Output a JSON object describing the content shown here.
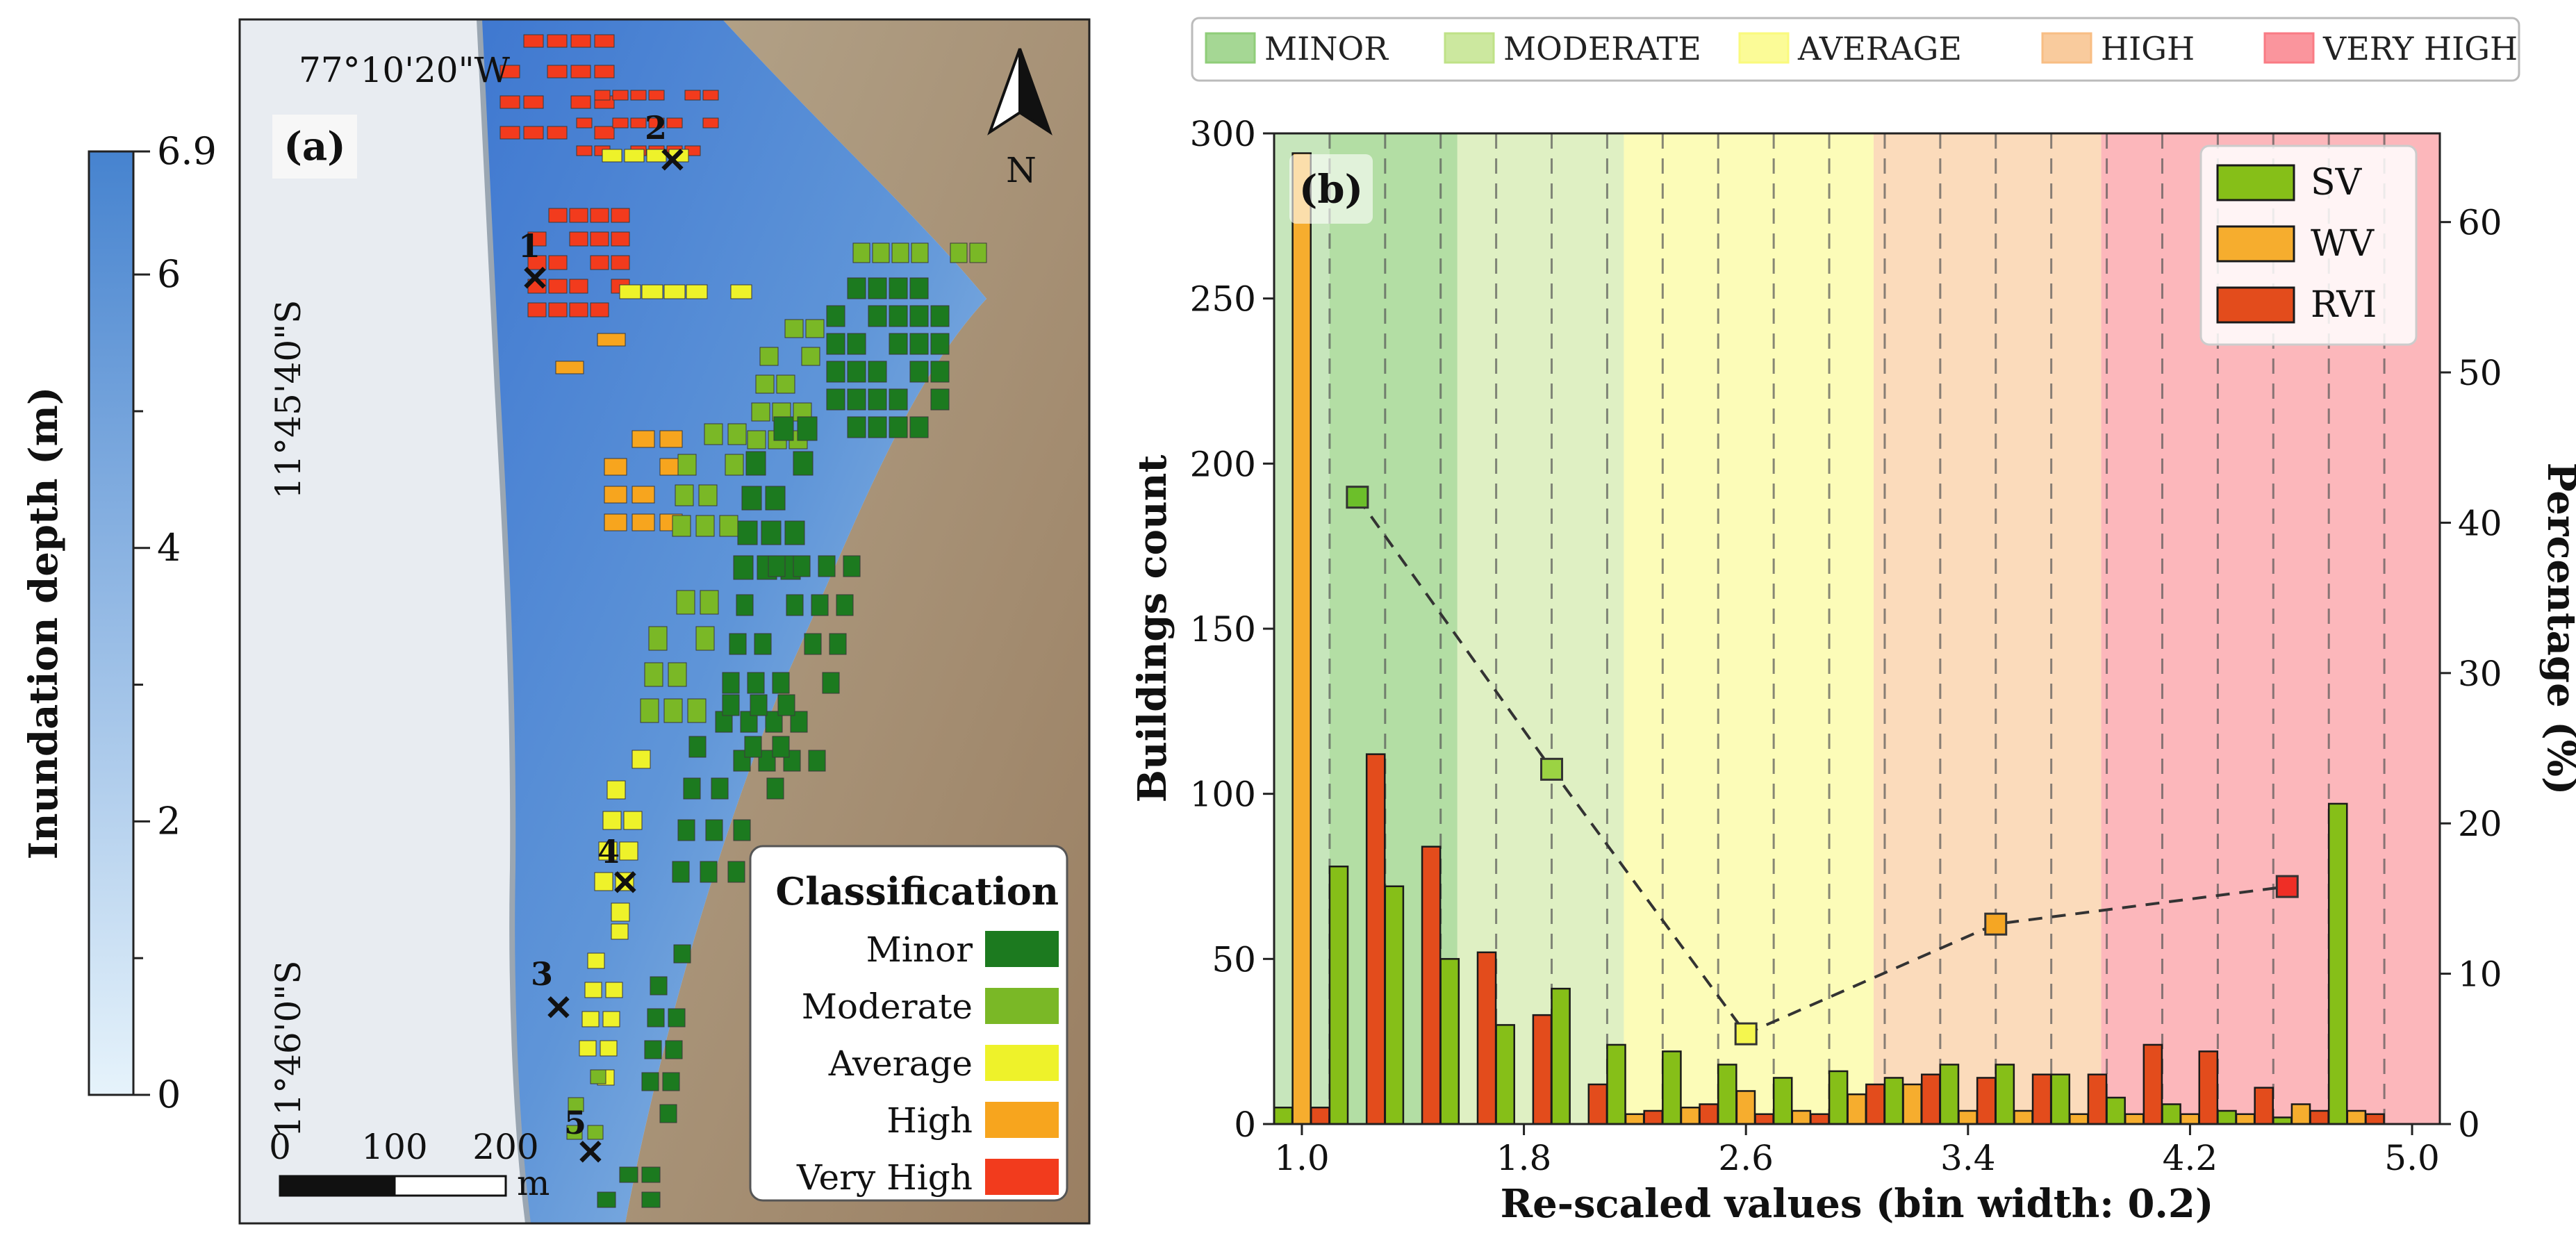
{
  "colorbar": {
    "label": "Inundation depth (m)",
    "min": 0,
    "max": 6.9,
    "ticks": [
      {
        "value": 0,
        "label": "0"
      },
      {
        "value": 2,
        "label": "2"
      },
      {
        "value": 4,
        "label": "4"
      },
      {
        "value": 6,
        "label": "6"
      },
      {
        "value": 6.9,
        "label": "6.9"
      }
    ],
    "minor_ticks": [
      1,
      3,
      5
    ],
    "color_low": "#e6f3fb",
    "color_high": "#4683cf"
  },
  "map": {
    "panel_label": "(a)",
    "coord_top": "77°10'20\"W",
    "coord_lat1": "11°45'40\"S",
    "coord_lat2": "11°46'0\"S",
    "north_label": "N",
    "scale_labels": [
      "0",
      "100",
      "200"
    ],
    "scale_unit": "m",
    "markers": [
      "1",
      "2",
      "3",
      "4",
      "5"
    ],
    "legend": {
      "title": "Classification",
      "items": [
        {
          "label": "Minor",
          "color": "#1c7a1f"
        },
        {
          "label": "Moderate",
          "color": "#7ab826"
        },
        {
          "label": "Average",
          "color": "#eef22a"
        },
        {
          "label": "High",
          "color": "#f7a51e"
        },
        {
          "label": "Very High",
          "color": "#f23b1d"
        }
      ]
    }
  },
  "chart_data": {
    "type": "bar",
    "panel_label": "(b)",
    "title": "",
    "xlabel": "Re-scaled values (bin width: 0.2)",
    "ylabel": "Buildings count",
    "ylabel_right": "Percentage (%)",
    "xlim": [
      0.9,
      5.1
    ],
    "ylim": [
      0,
      300
    ],
    "ylim_right": [
      0,
      65.9
    ],
    "x_ticks": [
      1.0,
      1.8,
      2.6,
      3.4,
      4.2,
      5.0
    ],
    "x_tick_labels": [
      "1.0",
      "1.8",
      "2.6",
      "3.4",
      "4.2",
      "5.0"
    ],
    "y_ticks": [
      0,
      50,
      100,
      150,
      200,
      250,
      300
    ],
    "y_ticks_right": [
      0,
      10,
      20,
      30,
      40,
      50,
      60
    ],
    "bin_width": 0.2,
    "bin_starts": [
      1.0,
      1.2,
      1.4,
      1.6,
      1.8,
      2.0,
      2.2,
      2.4,
      2.6,
      2.8,
      3.0,
      3.2,
      3.4,
      3.6,
      3.8,
      4.0,
      4.2,
      4.4,
      4.6,
      4.8
    ],
    "classes": [
      {
        "name": "MINOR",
        "range": [
          0.9,
          1.56
        ],
        "color": "#8fcd79",
        "fill_opacity": 0.5
      },
      {
        "name": "MODERATE",
        "range": [
          1.56,
          2.16
        ],
        "color": "#bfe287",
        "fill_opacity": 0.5
      },
      {
        "name": "AVERAGE",
        "range": [
          2.16,
          3.06
        ],
        "color": "#fafa7d",
        "fill_opacity": 0.55
      },
      {
        "name": "HIGH",
        "range": [
          3.06,
          3.88
        ],
        "color": "#f8be84",
        "fill_opacity": 0.55
      },
      {
        "name": "VERY HIGH",
        "range": [
          3.88,
          5.1
        ],
        "color": "#f97b84",
        "fill_opacity": 0.55
      }
    ],
    "series": [
      {
        "name": "SV",
        "color": "#86bf18",
        "values": [
          5,
          78,
          72,
          50,
          30,
          41,
          24,
          22,
          18,
          14,
          16,
          14,
          18,
          18,
          15,
          8,
          6,
          4,
          2,
          97
        ]
      },
      {
        "name": "WV",
        "color": "#f6ad2e",
        "values": [
          294,
          0,
          0,
          0,
          0,
          0,
          3,
          5,
          10,
          4,
          9,
          12,
          4,
          4,
          3,
          3,
          3,
          3,
          6,
          4
        ]
      },
      {
        "name": "RVI",
        "color": "#e34c1c",
        "values": [
          5,
          112,
          84,
          52,
          33,
          12,
          4,
          6,
          3,
          3,
          12,
          15,
          14,
          15,
          15,
          24,
          22,
          11,
          4,
          3
        ]
      }
    ],
    "percentage_line": {
      "x": [
        1.2,
        1.9,
        2.6,
        3.5,
        4.55
      ],
      "y": [
        41.7,
        23.6,
        6.0,
        13.3,
        15.8
      ],
      "colors": [
        "#6cbf2a",
        "#9bd343",
        "#f4f64e",
        "#f5a623",
        "#ef2e26"
      ]
    },
    "legend": {
      "position": "top-right",
      "entries": [
        "SV",
        "WV",
        "RVI"
      ]
    }
  }
}
